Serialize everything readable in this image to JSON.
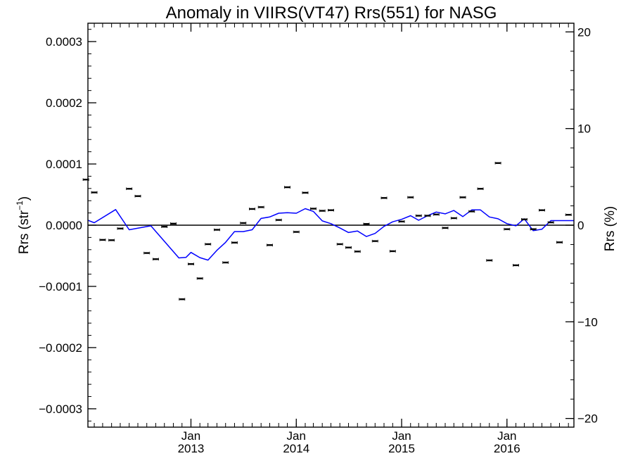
{
  "chart_data": {
    "type": "scatter",
    "title": "Anomaly in VIIRS(VT47) Rrs(551) for NASG",
    "ylabel_left_base": "Rrs (str",
    "ylabel_left_sup": "−1",
    "ylabel_left_close": ")",
    "ylabel_right": "Rrs (%)",
    "xlim": [
      "2012-01-10",
      "2016-08-20"
    ],
    "ylim_left": [
      -0.00033,
      0.00033
    ],
    "ylim_right": [
      -20.9,
      20.9
    ],
    "yticks_left": [
      {
        "value": 0.0003,
        "label": "0.0003"
      },
      {
        "value": 0.0002,
        "label": "0.0002"
      },
      {
        "value": 0.0001,
        "label": "0.0001"
      },
      {
        "value": 0,
        "label": "0.0000"
      },
      {
        "value": -0.0001,
        "label": "−0.0001"
      },
      {
        "value": -0.0002,
        "label": "−0.0002"
      },
      {
        "value": -0.0003,
        "label": "−0.0003"
      }
    ],
    "yticks_right": [
      {
        "value": 20,
        "label": "20"
      },
      {
        "value": 10,
        "label": "10"
      },
      {
        "value": 0,
        "label": "0"
      },
      {
        "value": -10,
        "label": "−10"
      },
      {
        "value": -20,
        "label": "−20"
      }
    ],
    "xticks": [
      {
        "date": "2013-01-01",
        "month": "Jan",
        "year": "2013"
      },
      {
        "date": "2014-01-01",
        "month": "Jan",
        "year": "2014"
      },
      {
        "date": "2015-01-01",
        "month": "Jan",
        "year": "2015"
      },
      {
        "date": "2016-01-01",
        "month": "Jan",
        "year": "2016"
      }
    ],
    "zero_line": 0,
    "colors": {
      "points": "#000000",
      "smooth": "#0000ff",
      "axes": "#000000"
    },
    "series": [
      {
        "type": "scatter_errorbar",
        "points": [
          {
            "date": "2012-01-03",
            "value": 7.45e-05
          },
          {
            "date": "2012-02-01",
            "value": 5.35e-05
          },
          {
            "date": "2012-03-01",
            "value": -2.4e-05
          },
          {
            "date": "2012-04-01",
            "value": -2.45e-05
          },
          {
            "date": "2012-05-01",
            "value": -5.5e-06
          },
          {
            "date": "2012-06-01",
            "value": 5.95e-05
          },
          {
            "date": "2012-07-01",
            "value": 4.75e-05
          },
          {
            "date": "2012-08-01",
            "value": -4.55e-05
          },
          {
            "date": "2012-09-01",
            "value": -5.55e-05
          },
          {
            "date": "2012-10-01",
            "value": -2.5e-06
          },
          {
            "date": "2012-11-01",
            "value": 2.5e-06
          },
          {
            "date": "2012-12-01",
            "value": -0.000121
          },
          {
            "date": "2013-01-01",
            "value": -6.35e-05
          },
          {
            "date": "2013-02-01",
            "value": -8.7e-05
          },
          {
            "date": "2013-03-01",
            "value": -3.1e-05
          },
          {
            "date": "2013-04-01",
            "value": -7.5e-06
          },
          {
            "date": "2013-05-01",
            "value": -6.1e-05
          },
          {
            "date": "2013-06-01",
            "value": -2.85e-05
          },
          {
            "date": "2013-07-01",
            "value": 3.5e-06
          },
          {
            "date": "2013-08-01",
            "value": 2.65e-05
          },
          {
            "date": "2013-09-01",
            "value": 2.95e-05
          },
          {
            "date": "2013-10-01",
            "value": -3.25e-05
          },
          {
            "date": "2013-11-01",
            "value": 8.5e-06
          },
          {
            "date": "2013-12-01",
            "value": 6.2e-05
          },
          {
            "date": "2014-01-01",
            "value": -1.1e-05
          },
          {
            "date": "2014-02-01",
            "value": 5.3e-05
          },
          {
            "date": "2014-03-01",
            "value": 2.7e-05
          },
          {
            "date": "2014-04-01",
            "value": 2.35e-05
          },
          {
            "date": "2014-05-01",
            "value": 2.45e-05
          },
          {
            "date": "2014-06-01",
            "value": -3.1e-05
          },
          {
            "date": "2014-07-01",
            "value": -3.65e-05
          },
          {
            "date": "2014-08-01",
            "value": -4.3e-05
          },
          {
            "date": "2014-09-01",
            "value": 2e-06
          },
          {
            "date": "2014-10-01",
            "value": -2.6e-05
          },
          {
            "date": "2014-11-01",
            "value": 4.45e-05
          },
          {
            "date": "2014-12-01",
            "value": -4.25e-05
          },
          {
            "date": "2015-01-01",
            "value": 6e-06
          },
          {
            "date": "2015-02-01",
            "value": 4.55e-05
          },
          {
            "date": "2015-03-01",
            "value": 1.55e-05
          },
          {
            "date": "2015-04-01",
            "value": 1.55e-05
          },
          {
            "date": "2015-05-01",
            "value": 1.75e-05
          },
          {
            "date": "2015-06-01",
            "value": -4.5e-06
          },
          {
            "date": "2015-07-01",
            "value": 1.15e-05
          },
          {
            "date": "2015-08-01",
            "value": 4.55e-05
          },
          {
            "date": "2015-09-01",
            "value": 2.25e-05
          },
          {
            "date": "2015-10-01",
            "value": 5.95e-05
          },
          {
            "date": "2015-11-01",
            "value": -5.75e-05
          },
          {
            "date": "2015-12-01",
            "value": 0.0001015
          },
          {
            "date": "2016-01-01",
            "value": -6.5e-06
          },
          {
            "date": "2016-02-01",
            "value": -6.55e-05
          },
          {
            "date": "2016-03-01",
            "value": 9.5e-06
          },
          {
            "date": "2016-04-01",
            "value": -6.5e-06
          },
          {
            "date": "2016-05-01",
            "value": 2.45e-05
          },
          {
            "date": "2016-06-01",
            "value": 4.5e-06
          },
          {
            "date": "2016-07-01",
            "value": -2.8e-05
          },
          {
            "date": "2016-08-01",
            "value": 1.7e-05
          }
        ]
      },
      {
        "type": "line",
        "points": [
          {
            "date": "2012-01-10",
            "value": 8e-06
          },
          {
            "date": "2012-02-01",
            "value": 4e-06
          },
          {
            "date": "2012-04-15",
            "value": 2.55e-05
          },
          {
            "date": "2012-06-01",
            "value": -7.5e-06
          },
          {
            "date": "2012-08-15",
            "value": -1e-06
          },
          {
            "date": "2012-11-20",
            "value": -5.35e-05
          },
          {
            "date": "2012-12-15",
            "value": -5.25e-05
          },
          {
            "date": "2013-01-01",
            "value": -4.45e-05
          },
          {
            "date": "2013-02-01",
            "value": -5.3e-05
          },
          {
            "date": "2013-03-01",
            "value": -5.7e-05
          },
          {
            "date": "2013-04-01",
            "value": -4.1e-05
          },
          {
            "date": "2013-05-01",
            "value": -2.8e-05
          },
          {
            "date": "2013-06-01",
            "value": -1.05e-05
          },
          {
            "date": "2013-07-01",
            "value": -1.05e-05
          },
          {
            "date": "2013-08-01",
            "value": -7.5e-06
          },
          {
            "date": "2013-09-01",
            "value": 1.1e-05
          },
          {
            "date": "2013-10-01",
            "value": 1.35e-05
          },
          {
            "date": "2013-11-01",
            "value": 1.95e-05
          },
          {
            "date": "2013-12-01",
            "value": 2.05e-05
          },
          {
            "date": "2014-01-01",
            "value": 1.95e-05
          },
          {
            "date": "2014-02-01",
            "value": 2.7e-05
          },
          {
            "date": "2014-03-01",
            "value": 2.25e-05
          },
          {
            "date": "2014-04-01",
            "value": 7e-06
          },
          {
            "date": "2014-05-01",
            "value": 2.5e-06
          },
          {
            "date": "2014-06-01",
            "value": -4.5e-06
          },
          {
            "date": "2014-07-01",
            "value": -1.2e-05
          },
          {
            "date": "2014-08-01",
            "value": -9.5e-06
          },
          {
            "date": "2014-09-01",
            "value": -1.85e-05
          },
          {
            "date": "2014-10-01",
            "value": -1.35e-05
          },
          {
            "date": "2014-11-01",
            "value": -2e-06
          },
          {
            "date": "2014-12-01",
            "value": 5.5e-06
          },
          {
            "date": "2015-01-01",
            "value": 9.5e-06
          },
          {
            "date": "2015-02-01",
            "value": 1.55e-05
          },
          {
            "date": "2015-03-01",
            "value": 8e-06
          },
          {
            "date": "2015-04-01",
            "value": 1.55e-05
          },
          {
            "date": "2015-05-01",
            "value": 2.15e-05
          },
          {
            "date": "2015-06-01",
            "value": 1.85e-05
          },
          {
            "date": "2015-07-01",
            "value": 2.4e-05
          },
          {
            "date": "2015-08-01",
            "value": 1.4e-05
          },
          {
            "date": "2015-09-01",
            "value": 2.5e-05
          },
          {
            "date": "2015-10-01",
            "value": 2.5e-05
          },
          {
            "date": "2015-11-01",
            "value": 1.35e-05
          },
          {
            "date": "2015-12-01",
            "value": 1.05e-05
          },
          {
            "date": "2016-01-01",
            "value": 2.5e-06
          },
          {
            "date": "2016-02-01",
            "value": -1e-06
          },
          {
            "date": "2016-03-01",
            "value": 1.05e-05
          },
          {
            "date": "2016-04-01",
            "value": -9e-06
          },
          {
            "date": "2016-05-01",
            "value": -6.5e-06
          },
          {
            "date": "2016-06-01",
            "value": 7.5e-06
          },
          {
            "date": "2016-07-01",
            "value": 7.5e-06
          },
          {
            "date": "2016-08-20",
            "value": 7.5e-06
          }
        ]
      }
    ]
  }
}
